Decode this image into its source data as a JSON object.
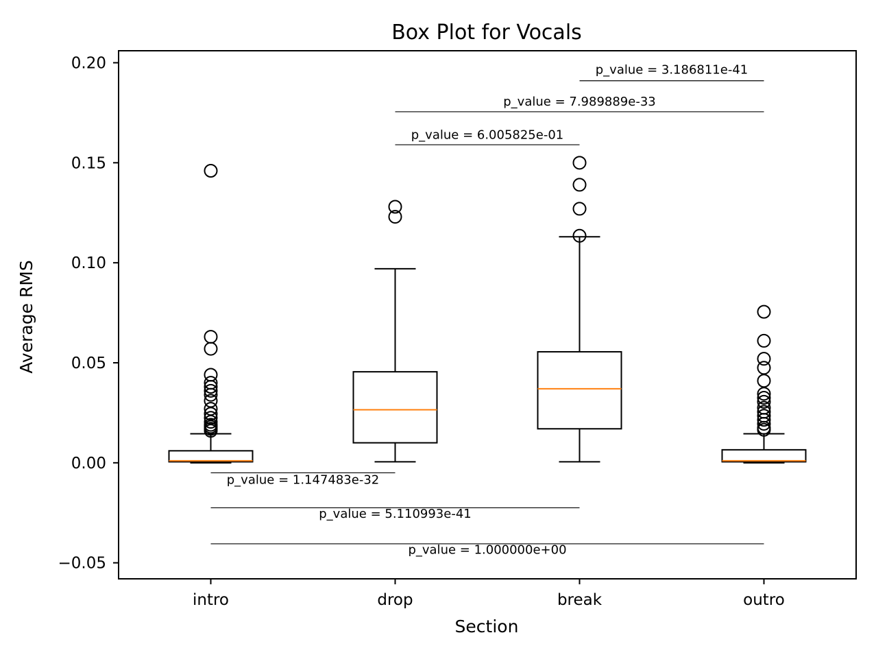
{
  "chart_data": {
    "type": "box",
    "title": "Box Plot for Vocals",
    "xlabel": "Section",
    "ylabel": "Average RMS",
    "categories": [
      "intro",
      "drop",
      "break",
      "outro"
    ],
    "ylim": [
      -0.058,
      0.206
    ],
    "yticks": [
      {
        "value": -0.05,
        "label": "−0.05"
      },
      {
        "value": 0.0,
        "label": "0.00"
      },
      {
        "value": 0.05,
        "label": "0.05"
      },
      {
        "value": 0.1,
        "label": "0.10"
      },
      {
        "value": 0.15,
        "label": "0.15"
      },
      {
        "value": 0.2,
        "label": "0.20"
      }
    ],
    "boxes": [
      {
        "name": "intro",
        "whislo": 0.0,
        "q1": 0.0005,
        "med": 0.001,
        "q3": 0.006,
        "whishi": 0.0145,
        "fliers": [
          0.016,
          0.017,
          0.018,
          0.019,
          0.0205,
          0.0225,
          0.0245,
          0.027,
          0.031,
          0.034,
          0.036,
          0.038,
          0.04,
          0.044,
          0.057,
          0.063,
          0.146
        ]
      },
      {
        "name": "drop",
        "whislo": 0.0005,
        "q1": 0.01,
        "med": 0.0265,
        "q3": 0.0455,
        "whishi": 0.097,
        "fliers": [
          0.123,
          0.128
        ]
      },
      {
        "name": "break",
        "whislo": 0.0005,
        "q1": 0.017,
        "med": 0.037,
        "q3": 0.0555,
        "whishi": 0.113,
        "fliers": [
          0.1135,
          0.127,
          0.139,
          0.15
        ]
      },
      {
        "name": "outro",
        "whislo": 0.0,
        "q1": 0.0005,
        "med": 0.001,
        "q3": 0.0065,
        "whishi": 0.0145,
        "fliers": [
          0.0165,
          0.0175,
          0.0195,
          0.0215,
          0.0235,
          0.0255,
          0.0275,
          0.0305,
          0.0325,
          0.0345,
          0.041,
          0.0475,
          0.052,
          0.061,
          0.0755
        ]
      }
    ],
    "annotations": [
      {
        "text": "p_value = 3.186811e-41",
        "x1": "break",
        "x2": "outro",
        "y_line": 0.191,
        "y_text": 0.1945
      },
      {
        "text": "p_value = 7.989889e-33",
        "x1": "drop",
        "x2": "outro",
        "y_line": 0.1755,
        "y_text": 0.1785
      },
      {
        "text": "p_value = 6.005825e-01",
        "x1": "drop",
        "x2": "break",
        "y_line": 0.159,
        "y_text": 0.162
      },
      {
        "text": "p_value = 1.147483e-32",
        "x1": "intro",
        "x2": "drop",
        "y_line": -0.005,
        "y_text": -0.0105
      },
      {
        "text": "p_value = 5.110993e-41",
        "x1": "intro",
        "x2": "break",
        "y_line": -0.0225,
        "y_text": -0.0275
      },
      {
        "text": "p_value = 1.000000e+00",
        "x1": "intro",
        "x2": "outro",
        "y_line": -0.0405,
        "y_text": -0.0455
      }
    ],
    "colors": {
      "box": "#000000",
      "median": "#ff7f0e",
      "flier": "#000000"
    }
  }
}
